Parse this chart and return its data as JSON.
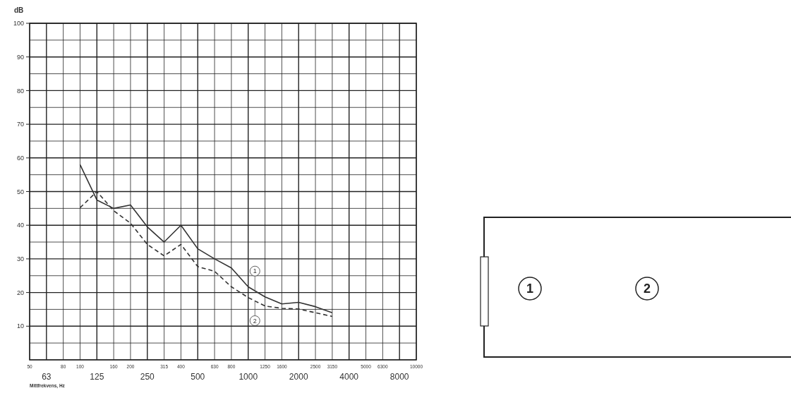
{
  "chart_data": {
    "type": "line",
    "ylabel": "dB",
    "xlabel": "Mittfrekvens, Hz",
    "categories": [
      "50",
      "63",
      "80",
      "100",
      "125",
      "160",
      "200",
      "250",
      "315",
      "400",
      "500",
      "630",
      "800",
      "1000",
      "1250",
      "1600",
      "2000",
      "2500",
      "3150",
      "4000",
      "5000",
      "6300",
      "8000",
      "10000"
    ],
    "ylim": [
      0,
      100
    ],
    "yticks": [
      {
        "value": 0,
        "label": null
      },
      {
        "value": 5,
        "label": null
      },
      10,
      {
        "value": 15,
        "label": null
      },
      20,
      {
        "value": 25,
        "label": null
      },
      30,
      {
        "value": 35,
        "label": null
      },
      40,
      {
        "value": 45,
        "label": null
      },
      50,
      {
        "value": 55,
        "label": null
      },
      60,
      {
        "value": 65,
        "label": null
      },
      70,
      {
        "value": 75,
        "label": null
      },
      80,
      {
        "value": 85,
        "label": null
      },
      90,
      {
        "value": 95,
        "label": null
      },
      100
    ],
    "grid": true,
    "marker": "none",
    "series": [
      {
        "name": "1",
        "color": "#333333",
        "line_style": "solid",
        "values": [
          null,
          null,
          null,
          58,
          47.5,
          45,
          46,
          39.5,
          35,
          40,
          33,
          30,
          27.3,
          21.7,
          18.7,
          16.6,
          17.1,
          15.8,
          14,
          null,
          null,
          null,
          null,
          null
        ]
      },
      {
        "name": "2",
        "color": "#333333",
        "line_style": "dashed",
        "values": [
          null,
          null,
          null,
          45.2,
          50,
          44.3,
          40.6,
          34.3,
          30.9,
          34.3,
          27.7,
          26.3,
          21.7,
          18.5,
          16,
          15.3,
          15.1,
          14,
          12.9,
          null,
          null,
          null,
          null,
          null
        ]
      }
    ]
  }
}
